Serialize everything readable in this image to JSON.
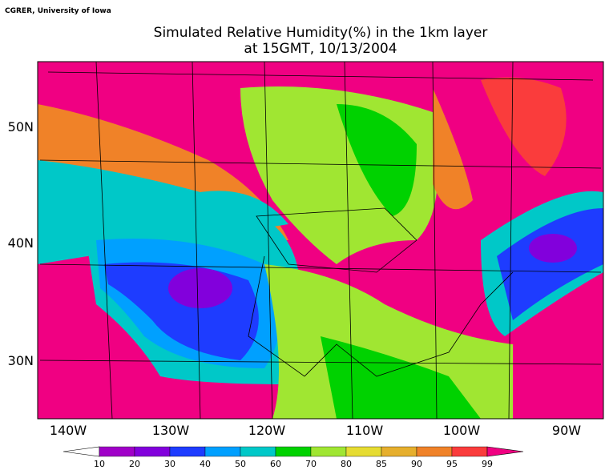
{
  "header": {
    "credit": "CGRER, University of Iowa",
    "title": "Simulated Relative Humidity(%) in the 1km layer",
    "subtitle": "at 15GMT, 10/13/2004"
  },
  "map": {
    "lat_labels": [
      "50N",
      "40N",
      "30N"
    ],
    "lon_labels": [
      "140W",
      "130W",
      "120W",
      "110W",
      "100W",
      "90W"
    ]
  },
  "colorbar": {
    "labels": [
      10,
      20,
      30,
      40,
      50,
      60,
      70,
      80,
      85,
      90,
      95,
      99
    ],
    "colors": [
      "#ffffff",
      "#a000c8",
      "#8200dc",
      "#1e3cff",
      "#00a0ff",
      "#00c8c8",
      "#00d200",
      "#a0e632",
      "#e6dc32",
      "#e6af2d",
      "#f08228",
      "#fa3c3c",
      "#f00082"
    ]
  }
}
